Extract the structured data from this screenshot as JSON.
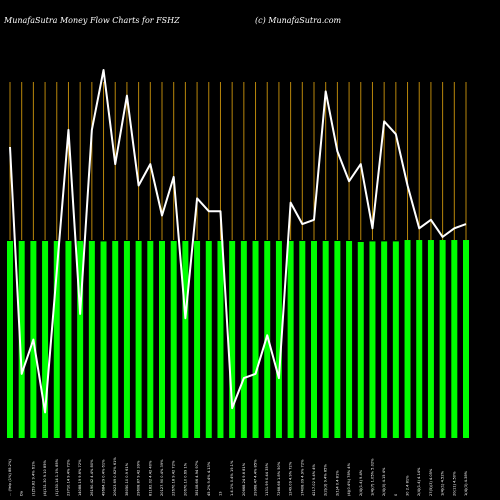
{
  "header": {
    "title": "MunafaSutra  Money Flow  Charts for FSHZ",
    "watermark": "(c) MunafaSutra.com"
  },
  "colors": {
    "background": "#000000",
    "bar": "#00ff00",
    "line": "#ffffff",
    "grid": "#b8860b"
  },
  "chart_data": {
    "type": "bar",
    "title": "MunafaSutra  Money Flow  Charts for FSHZ",
    "grid": true,
    "bar_values": [
      1.0,
      1.0,
      1.0,
      1.0,
      1.0,
      1.0,
      1.0,
      1.0,
      0.998,
      1.0,
      1.0,
      1.0,
      1.0,
      1.0,
      1.0,
      1.0,
      1.0,
      1.0,
      1.0,
      1.0,
      1.0,
      1.0,
      1.0,
      1.0,
      1.0,
      1.0,
      1.0,
      1.0,
      1.0,
      1.0,
      0.995,
      0.998,
      0.998,
      0.998,
      1.005,
      1.005,
      1.005,
      1.005,
      1.005,
      1.005
    ],
    "line_values": [
      0.75,
      0.22,
      0.3,
      0.13,
      0.46,
      0.79,
      0.36,
      0.79,
      0.93,
      0.71,
      0.87,
      0.66,
      0.71,
      0.59,
      0.68,
      0.35,
      0.63,
      0.6,
      0.6,
      0.14,
      0.21,
      0.22,
      0.31,
      0.21,
      0.62,
      0.57,
      0.58,
      0.88,
      0.74,
      0.67,
      0.71,
      0.56,
      0.81,
      0.78,
      0.66,
      0.56,
      0.58,
      0.54,
      0.56,
      0.57
    ],
    "x_tick_labels": [
      "... (Yelp (1%) 88.2%)",
      "Da",
      "(1)59.82 9.4% 61%",
      "(4)131.30 9.10 85%",
      "(1)130.14 1.1% 85%",
      "23710.14 9.4% 72%",
      "14088.19 9.6% 72%",
      "26190.42 4.4% 80%",
      "49684.29 0.4% 61%",
      "20623.69 0.62% 61%",
      "38050.10 0.9 61%",
      "29608.87 9.42 39%",
      "81182.02 4.42 40%",
      "20127.90 0.4% 39%",
      "22670.18 9.42 72%",
      "20670.10 0.69 1%",
      "38108.66 4.94 97%",
      "45.2% 9.4% 4.13%",
      "13",
      "1.4.1% 0.4% 19.1%",
      "20668.24 9.6 81%",
      "29968.47 4.4% 85%",
      "1131.99 0.44 35%",
      "7268.68 1.8% 50%",
      "1249.09 4.9% 72%",
      "17408.09 4.9% 72%",
      "4217.02 9.4% 4%",
      "2(2)(3) 9.4% 85%",
      "2(1)4 0.4 81%",
      "(4)(0.4%) 78% 4%",
      "2(4)(1.4) 9.4%",
      "1(4)(7) 1.05% 5.02%",
      "2(4)(0) 4.15 4%",
      "0",
      "30 2.4 81%",
      "2(4)(1.4) 4.14%",
      "27(5)(3) 4.05%",
      "1(4)(1) 4.52%",
      "20(11) 4.50%",
      "1(4)(3) 4.38%"
    ]
  }
}
